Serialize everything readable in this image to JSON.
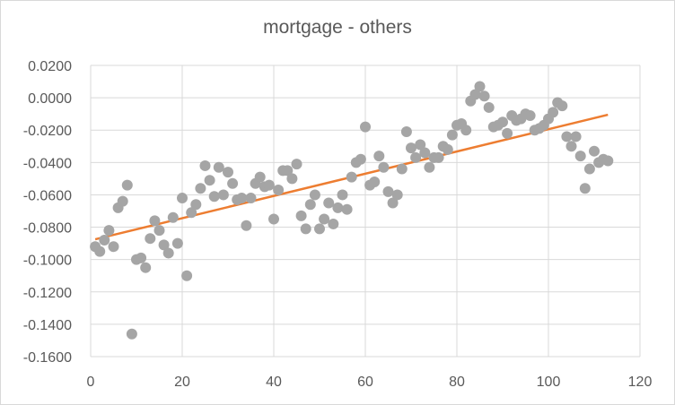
{
  "chart_data": {
    "type": "scatter",
    "title": "mortgage - others",
    "xlabel": "",
    "ylabel": "",
    "xlim": [
      0,
      120
    ],
    "ylim": [
      -0.16,
      0.02
    ],
    "xticks": [
      0,
      20,
      40,
      60,
      80,
      100,
      120
    ],
    "yticks": [
      0.02,
      0.0,
      -0.02,
      -0.04,
      -0.06,
      -0.08,
      -0.1,
      -0.12,
      -0.14,
      -0.16
    ],
    "xtick_labels": [
      "0",
      "20",
      "40",
      "60",
      "80",
      "100",
      "120"
    ],
    "ytick_labels": [
      "0.0200",
      "0.0000",
      "-0.0200",
      "-0.0400",
      "-0.0600",
      "-0.0800",
      "-0.1000",
      "-0.1200",
      "-0.1400",
      "-0.1600"
    ],
    "grid": {
      "horizontal": true,
      "vertical": true
    },
    "legend": "none",
    "series": [
      {
        "type": "scatter",
        "color": "#a5a5a5",
        "x": [
          1,
          2,
          3,
          4,
          5,
          6,
          7,
          8,
          9,
          10,
          11,
          12,
          13,
          14,
          15,
          16,
          17,
          18,
          19,
          20,
          21,
          22,
          23,
          24,
          25,
          26,
          27,
          28,
          29,
          30,
          31,
          32,
          33,
          34,
          35,
          36,
          37,
          38,
          39,
          40,
          41,
          42,
          43,
          44,
          45,
          46,
          47,
          48,
          49,
          50,
          51,
          52,
          53,
          54,
          55,
          56,
          57,
          58,
          59,
          60,
          61,
          62,
          63,
          64,
          65,
          66,
          67,
          68,
          69,
          70,
          71,
          72,
          73,
          74,
          75,
          76,
          77,
          78,
          79,
          80,
          81,
          82,
          83,
          84,
          85,
          86,
          87,
          88,
          89,
          90,
          91,
          92,
          93,
          94,
          95,
          96,
          97,
          98,
          99,
          100,
          101,
          102,
          103,
          104,
          105,
          106,
          107,
          108,
          109,
          110,
          111,
          112,
          113
        ],
        "y": [
          -0.092,
          -0.095,
          -0.088,
          -0.082,
          -0.092,
          -0.068,
          -0.064,
          -0.054,
          -0.146,
          -0.1,
          -0.099,
          -0.105,
          -0.087,
          -0.076,
          -0.082,
          -0.091,
          -0.096,
          -0.074,
          -0.09,
          -0.062,
          -0.11,
          -0.071,
          -0.066,
          -0.056,
          -0.042,
          -0.051,
          -0.061,
          -0.043,
          -0.06,
          -0.046,
          -0.053,
          -0.063,
          -0.062,
          -0.079,
          -0.062,
          -0.053,
          -0.049,
          -0.055,
          -0.054,
          -0.075,
          -0.057,
          -0.045,
          -0.045,
          -0.05,
          -0.041,
          -0.073,
          -0.081,
          -0.066,
          -0.06,
          -0.081,
          -0.075,
          -0.065,
          -0.078,
          -0.068,
          -0.06,
          -0.069,
          -0.049,
          -0.04,
          -0.038,
          -0.018,
          -0.054,
          -0.052,
          -0.036,
          -0.043,
          -0.058,
          -0.065,
          -0.06,
          -0.044,
          -0.021,
          -0.031,
          -0.037,
          -0.029,
          -0.034,
          -0.043,
          -0.037,
          -0.037,
          -0.03,
          -0.032,
          -0.023,
          -0.017,
          -0.016,
          -0.02,
          -0.002,
          0.002,
          0.007,
          0.001,
          -0.006,
          -0.018,
          -0.017,
          -0.015,
          -0.022,
          -0.011,
          -0.014,
          -0.013,
          -0.01,
          -0.011,
          -0.02,
          -0.019,
          -0.017,
          -0.013,
          -0.009,
          -0.003,
          -0.005,
          -0.024,
          -0.03,
          -0.024,
          -0.036,
          -0.056,
          -0.044,
          -0.033,
          -0.04,
          -0.038,
          -0.039
        ]
      },
      {
        "type": "line",
        "name": "trendline",
        "color": "#ed7d31",
        "x": [
          1,
          113
        ],
        "y": [
          -0.0875,
          -0.0105
        ]
      }
    ]
  }
}
